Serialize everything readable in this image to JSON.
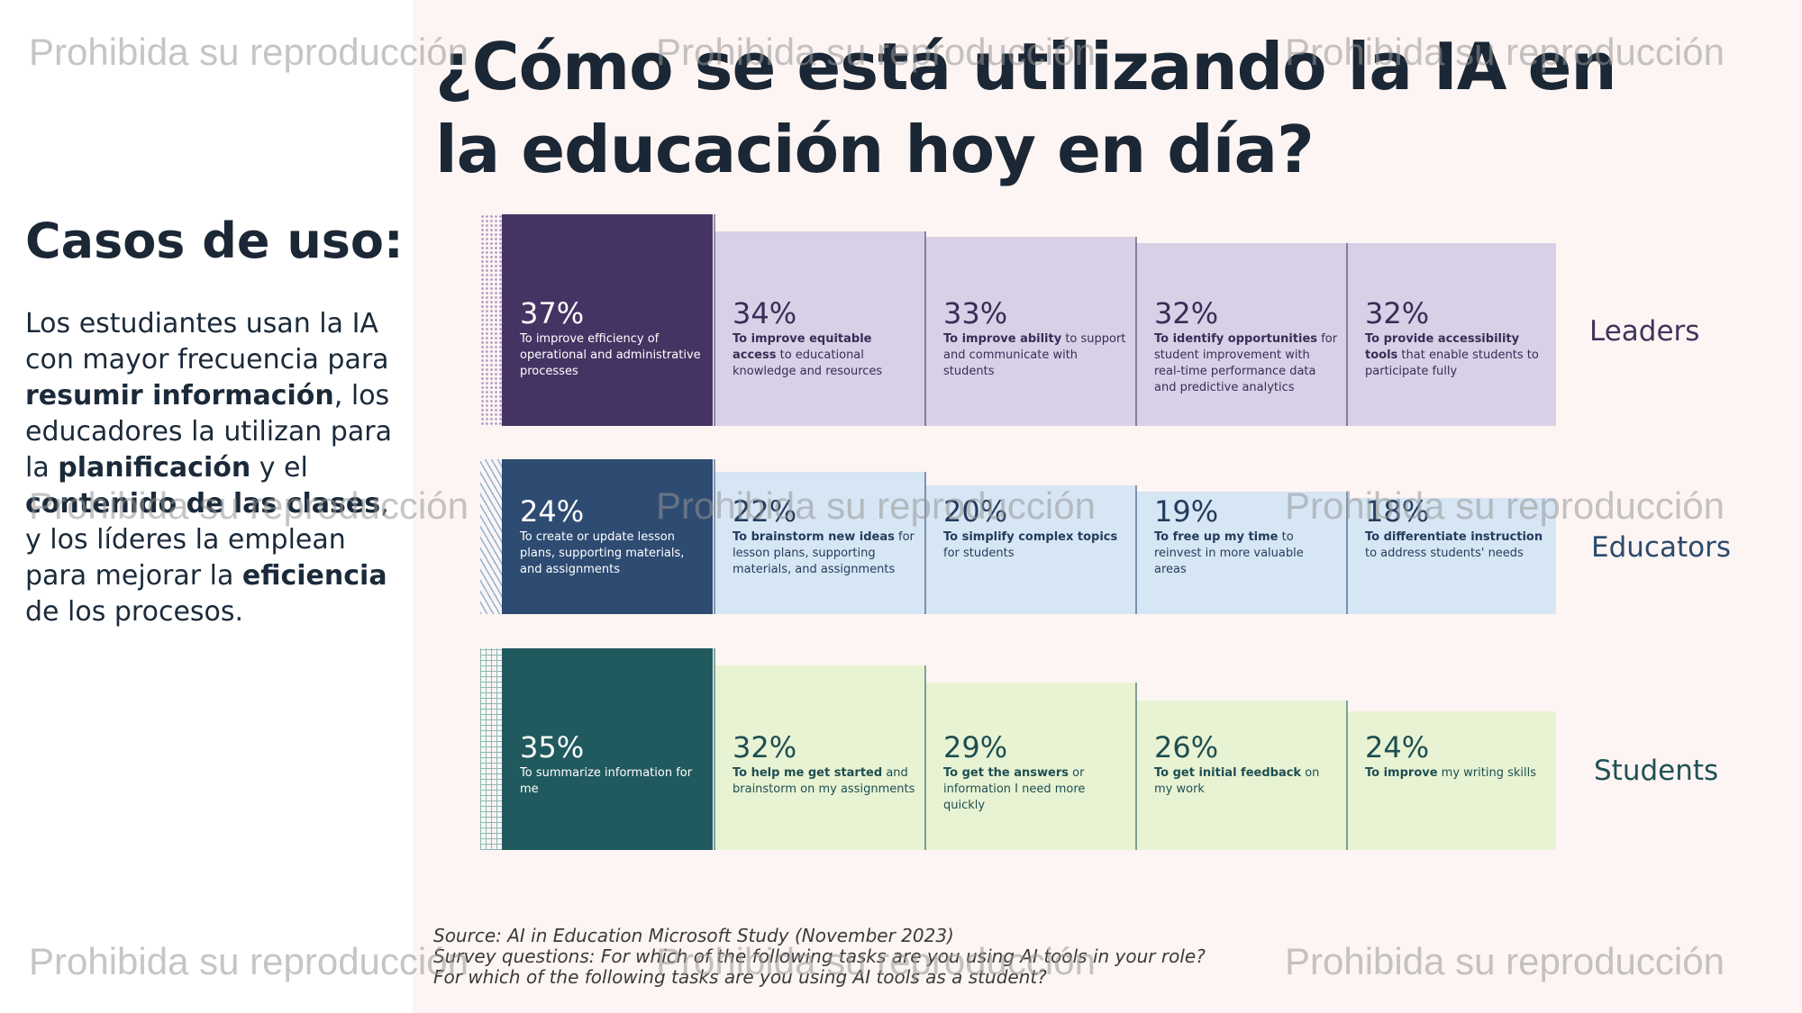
{
  "title": "¿Cómo se está utilizando la IA en la educación hoy en día?",
  "cases_title": "Casos de uso:",
  "body": {
    "p1": "Los estudiantes usan la IA con mayor frecuencia para ",
    "b1": "resumir información",
    "p2": ", los educadores la utilizan para la ",
    "b2": "planificación",
    "p3": " y el ",
    "b3": "contenido de las clases",
    "p4": ", y los líderes la emplean para mejorar la ",
    "b4": "eficiencia",
    "p5": " de los procesos."
  },
  "source": {
    "line1": "Source: AI in Education Microsoft Study (November 2023)",
    "line2": "Survey questions: For which of the following tasks are you using AI tools in your role?",
    "line3": "For which of the following tasks are you using AI tools as a student?"
  },
  "watermark": "Prohibida su reproducción",
  "chart_data": {
    "type": "bar",
    "y_unit": "%",
    "series": [
      {
        "name": "Leaders",
        "colors": {
          "accent": "#453463",
          "light": "#d8d0e6",
          "text_dark": "#3a2c57",
          "label": "#3f345c"
        },
        "items": [
          {
            "value": 37,
            "label": "37%",
            "bold": "",
            "text": "To improve efficiency of operational and administrative processes"
          },
          {
            "value": 34,
            "label": "34%",
            "bold": "To improve equitable access",
            "text": " to educational knowledge and resources"
          },
          {
            "value": 33,
            "label": "33%",
            "bold": "To improve ability",
            "text": " to support and communicate with students"
          },
          {
            "value": 32,
            "label": "32%",
            "bold": "To identify opportunities",
            "text": " for student improvement with real-time performance data and predictive analytics"
          },
          {
            "value": 32,
            "label": "32%",
            "bold": "To provide accessibility tools",
            "text": " that enable students to participate fully"
          }
        ]
      },
      {
        "name": "Educators",
        "colors": {
          "accent": "#2e4b72",
          "light": "#d6e6f4",
          "text_dark": "#243c5c",
          "label": "#2c4a6c"
        },
        "items": [
          {
            "value": 24,
            "label": "24%",
            "bold": "",
            "text": "To create or update lesson plans, supporting materials, and assignments"
          },
          {
            "value": 22,
            "label": "22%",
            "bold": "To brainstorm new ideas",
            "text": " for lesson plans, supporting materials, and assignments"
          },
          {
            "value": 20,
            "label": "20%",
            "bold": "To simplify complex topics",
            "text": " for students"
          },
          {
            "value": 19,
            "label": "19%",
            "bold": "To free up my time",
            "text": " to reinvest in more valuable areas"
          },
          {
            "value": 18,
            "label": "18%",
            "bold": "To differentiate instruction",
            "text": " to address students' needs"
          }
        ]
      },
      {
        "name": "Students",
        "colors": {
          "accent": "#215a5e",
          "light": "#e8f3d3",
          "text_dark": "#1e4e52",
          "label": "#1f5156"
        },
        "items": [
          {
            "value": 35,
            "label": "35%",
            "bold": "",
            "text": "To summarize information for me"
          },
          {
            "value": 32,
            "label": "32%",
            "bold": "To help me get started",
            "text": " and brainstorm on my assignments"
          },
          {
            "value": 29,
            "label": "29%",
            "bold": "To get the answers",
            "text": " or information I need more quickly"
          },
          {
            "value": 26,
            "label": "26%",
            "bold": "To get initial feedback",
            "text": " on my work"
          },
          {
            "value": 24,
            "label": "24%",
            "bold": "To improve",
            "text": " my writing skills"
          }
        ]
      }
    ]
  }
}
